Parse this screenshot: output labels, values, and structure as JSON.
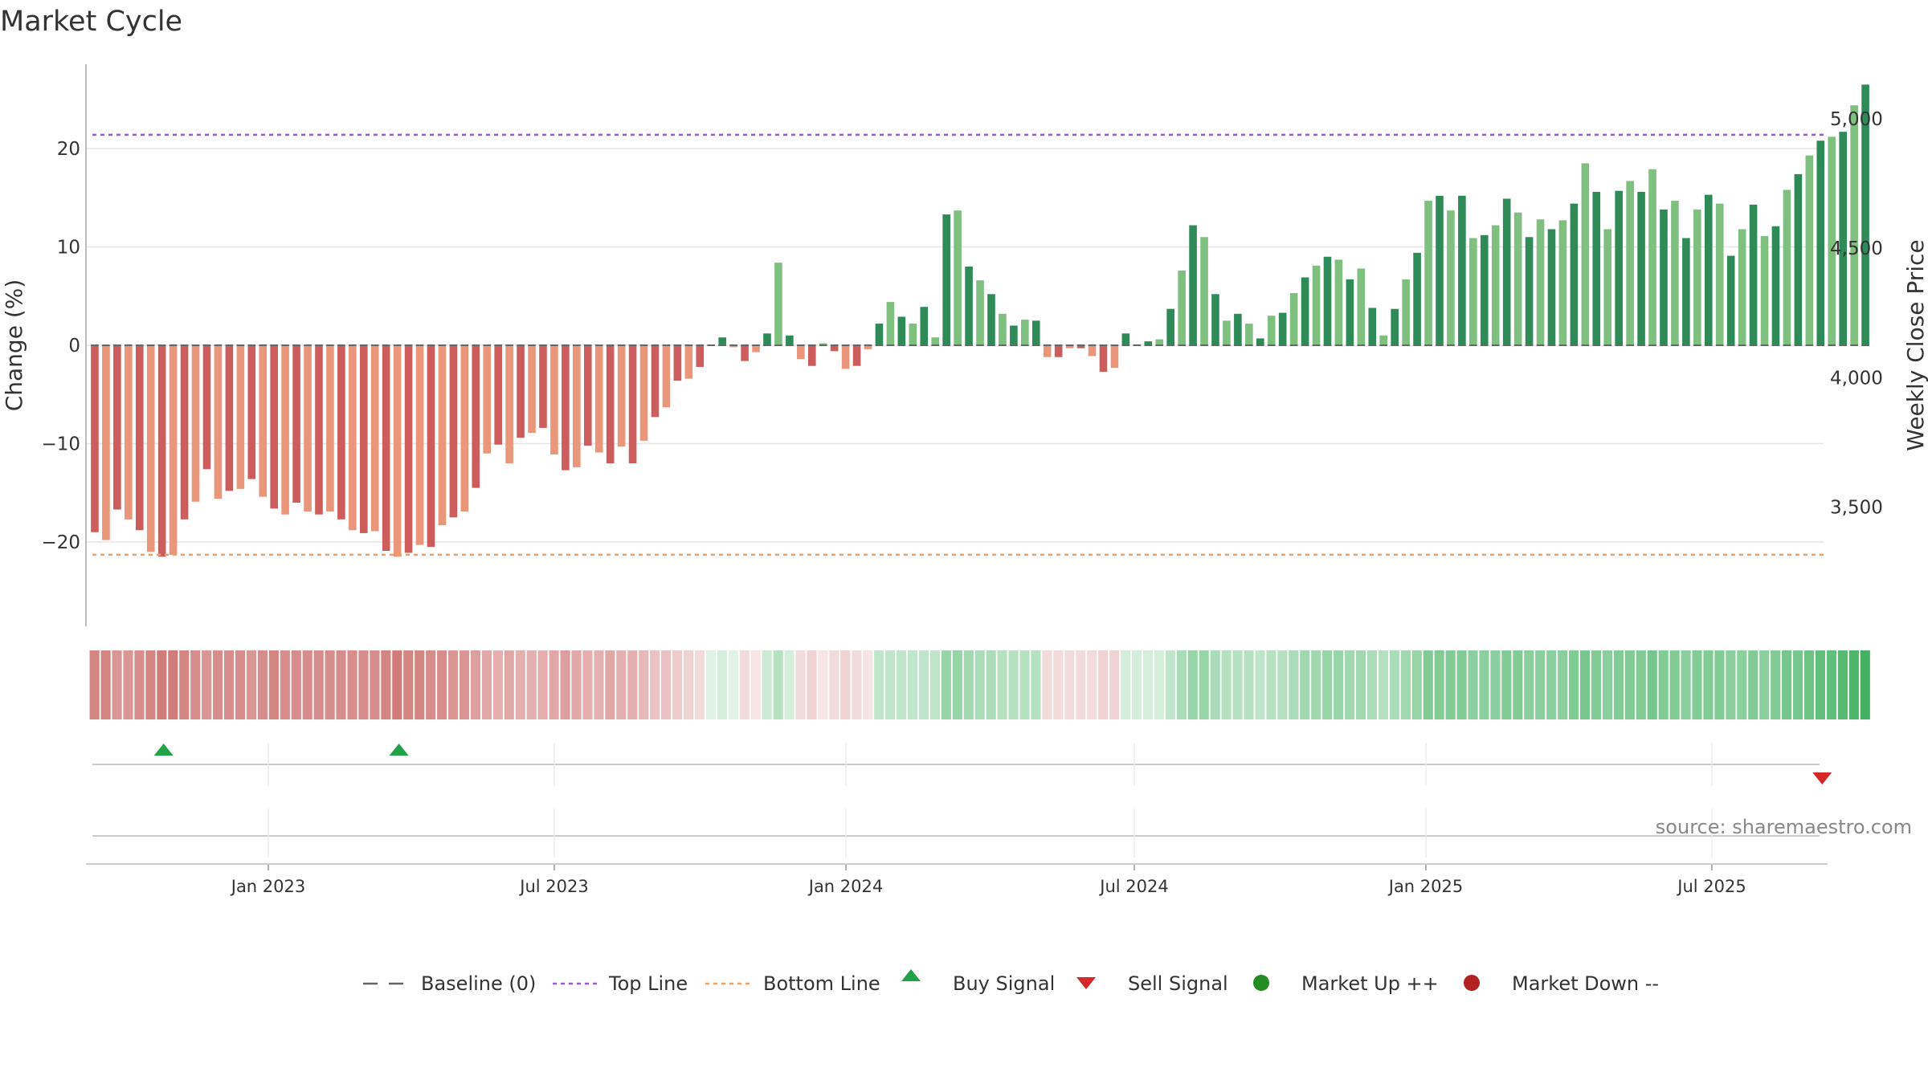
{
  "title": "Market Cycle",
  "source": "source: sharemaestro.com",
  "colors": {
    "baseline": "#666666",
    "top_line": "#9b59d9",
    "bottom_line": "#f0a060",
    "buy": "#22a34a",
    "sell": "#d62728",
    "market_up": "#228b22",
    "market_down": "#b22222",
    "up_strong": "#2e8b57",
    "up_light": "#7fbf7f",
    "down_strong": "#cd5c5c",
    "down_light": "#e9967a"
  },
  "chart_data": {
    "type": "bar",
    "title": "Market Cycle",
    "ylabel": "Change (%)",
    "y2label": "Weekly Close Price",
    "ylim": [
      -28.5,
      28.5
    ],
    "y_ticks": [
      20,
      10,
      0,
      -10,
      -20
    ],
    "y_tick_labels": [
      "20",
      "10",
      "0",
      "−10",
      "−20"
    ],
    "y2_ticks": [
      5000,
      4500,
      4000,
      3500
    ],
    "y2_tick_labels": [
      "5,000",
      "4,500",
      "4,000",
      "3,500"
    ],
    "top_line": 21.4,
    "bottom_line": -21.3,
    "x_tick_labels": [
      "Jan 2023",
      "Jul 2023",
      "Jan 2024",
      "Jul 2024",
      "Jan 2025",
      "Jul 2025"
    ],
    "legend": [
      "Baseline (0)",
      "Top Line",
      "Bottom Line",
      "Buy Signal",
      "Sell Signal",
      "Market Up ++",
      "Market Down --"
    ],
    "legend_position": "bottom-center",
    "grid": true,
    "values": [
      -19,
      -19.8,
      -16.7,
      -17.7,
      -18.8,
      -21,
      -21.5,
      -21.3,
      -17.7,
      -15.9,
      -12.6,
      -15.6,
      -14.8,
      -14.6,
      -13.6,
      -15.4,
      -16.6,
      -17.2,
      -16,
      -16.9,
      -17.2,
      -16.9,
      -17.7,
      -18.8,
      -19.1,
      -18.9,
      -20.9,
      -21.5,
      -21.1,
      -20.3,
      -20.5,
      -18.3,
      -17.5,
      -16.9,
      -14.5,
      -11,
      -10.1,
      -12,
      -9.4,
      -8.9,
      -8.4,
      -11.1,
      -12.7,
      -12.4,
      -10.2,
      -10.9,
      -12,
      -10.3,
      -12,
      -9.7,
      -7.3,
      -6.3,
      -3.6,
      -3.4,
      -2.2,
      0,
      0.8,
      -0.2,
      -1.6,
      -0.7,
      1.2,
      8.4,
      1,
      -1.4,
      -2.1,
      0.2,
      -0.6,
      -2.4,
      -2.1,
      -0.4,
      2.2,
      4.4,
      2.9,
      2.2,
      3.9,
      0.8,
      13.3,
      13.7,
      8,
      6.6,
      5.2,
      3.2,
      2,
      2.6,
      2.5,
      -1.2,
      -1.2,
      -0.3,
      -0.3,
      -1.1,
      -2.7,
      -2.3,
      1.2,
      0.1,
      0.4,
      0.6,
      3.7,
      7.6,
      12.2,
      11,
      5.2,
      2.5,
      3.2,
      2.2,
      0.7,
      3,
      3.3,
      5.3,
      6.9,
      8.1,
      9,
      8.7,
      6.7,
      7.8,
      3.8,
      1,
      3.7,
      6.7,
      9.4,
      14.7,
      15.2,
      13.7,
      15.2,
      10.9,
      11.2,
      12.2,
      14.9,
      13.5,
      11,
      12.8,
      11.8,
      12.7,
      14.4,
      18.5,
      15.6,
      11.8,
      15.7,
      16.7,
      15.6,
      17.9,
      13.8,
      14.7,
      10.9,
      13.8,
      15.3,
      14.4,
      9.1,
      11.8,
      14.3,
      11.1,
      12.1,
      15.8,
      17.4,
      19.3,
      20.8,
      21.2,
      21.7,
      24.4,
      26.5
    ],
    "band_intensity": [
      -0.65,
      -0.65,
      -0.55,
      -0.55,
      -0.6,
      -0.65,
      -0.7,
      -0.7,
      -0.65,
      -0.6,
      -0.55,
      -0.6,
      -0.6,
      -0.6,
      -0.55,
      -0.6,
      -0.65,
      -0.6,
      -0.6,
      -0.6,
      -0.6,
      -0.6,
      -0.6,
      -0.6,
      -0.6,
      -0.6,
      -0.65,
      -0.7,
      -0.65,
      -0.65,
      -0.6,
      -0.6,
      -0.55,
      -0.55,
      -0.5,
      -0.45,
      -0.4,
      -0.45,
      -0.4,
      -0.4,
      -0.4,
      -0.45,
      -0.5,
      -0.45,
      -0.4,
      -0.4,
      -0.45,
      -0.4,
      -0.4,
      -0.35,
      -0.3,
      -0.3,
      -0.25,
      -0.2,
      -0.15,
      0.1,
      0.15,
      0.1,
      -0.15,
      -0.1,
      0.2,
      0.3,
      0.15,
      -0.15,
      -0.2,
      -0.1,
      -0.15,
      -0.2,
      -0.15,
      -0.1,
      0.25,
      0.25,
      0.25,
      0.25,
      0.25,
      0.25,
      0.45,
      0.45,
      0.4,
      0.35,
      0.35,
      0.3,
      0.3,
      0.3,
      0.3,
      -0.15,
      -0.15,
      -0.15,
      -0.15,
      -0.15,
      -0.2,
      -0.2,
      0.15,
      0.15,
      0.15,
      0.15,
      0.25,
      0.35,
      0.45,
      0.45,
      0.35,
      0.3,
      0.3,
      0.3,
      0.25,
      0.3,
      0.3,
      0.35,
      0.4,
      0.4,
      0.45,
      0.45,
      0.4,
      0.4,
      0.35,
      0.3,
      0.35,
      0.4,
      0.45,
      0.55,
      0.55,
      0.55,
      0.55,
      0.5,
      0.5,
      0.5,
      0.55,
      0.55,
      0.5,
      0.5,
      0.5,
      0.5,
      0.55,
      0.6,
      0.55,
      0.5,
      0.55,
      0.55,
      0.55,
      0.6,
      0.55,
      0.55,
      0.5,
      0.55,
      0.55,
      0.55,
      0.5,
      0.5,
      0.55,
      0.5,
      0.55,
      0.6,
      0.6,
      0.65,
      0.7,
      0.7,
      0.75,
      0.8,
      0.85
    ],
    "buy_signal_indices": [
      6,
      27
    ],
    "sell_signal_indices": [
      154
    ]
  }
}
